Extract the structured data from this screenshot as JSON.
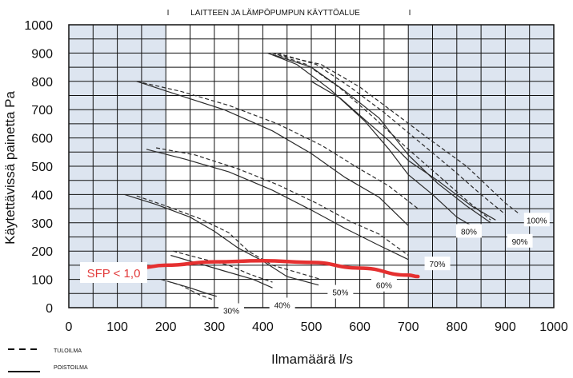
{
  "chart_data": {
    "type": "line",
    "title": "LAITTEEN JA LÄMPÖPUMPUN KÄYTTÖALUE",
    "xlabel": "Ilmamäärä l/s",
    "ylabel": "Käytettävissä painetta Pa",
    "xlim": [
      0,
      1000
    ],
    "ylim": [
      0,
      1000
    ],
    "xticks": [
      "0",
      "50",
      "100",
      "150",
      "200",
      "250",
      "300",
      "350",
      "400",
      "450",
      "500",
      "550",
      "600",
      "650",
      "700",
      "750",
      "800",
      "850",
      "900",
      "950",
      "1000"
    ],
    "xtick_labels": [
      "0",
      "100",
      "200",
      "300",
      "400",
      "500",
      "600",
      "700",
      "800",
      "900",
      "1000"
    ],
    "ytick_labels": [
      "0",
      "100",
      "200",
      "300",
      "400",
      "500",
      "600",
      "700",
      "800",
      "900",
      "1000"
    ],
    "grid": true,
    "shaded_x_ranges": [
      [
        0,
        200
      ],
      [
        700,
        1000
      ]
    ],
    "legend": [
      {
        "label": "TULOILMA",
        "style": "dashed"
      },
      {
        "label": "POISTOILMA",
        "style": "solid"
      }
    ],
    "fan_labels": [
      {
        "text": "30%",
        "x": 335,
        "y": -10
      },
      {
        "text": "40%",
        "x": 440,
        "y": 10
      },
      {
        "text": "50%",
        "x": 560,
        "y": 55
      },
      {
        "text": "60%",
        "x": 650,
        "y": 80
      },
      {
        "text": "70%",
        "x": 760,
        "y": 155
      },
      {
        "text": "80%",
        "x": 825,
        "y": 270
      },
      {
        "text": "90%",
        "x": 930,
        "y": 235
      },
      {
        "text": "100%",
        "x": 965,
        "y": 310
      }
    ],
    "sfp_label": "SFP < 1,0",
    "sfp_curve": [
      [
        140,
        140
      ],
      [
        200,
        150
      ],
      [
        300,
        162
      ],
      [
        400,
        166
      ],
      [
        500,
        160
      ],
      [
        600,
        140
      ],
      [
        700,
        115
      ],
      [
        720,
        110
      ]
    ],
    "series": [
      {
        "style": "dashed",
        "points": [
          [
            190,
            100
          ],
          [
            230,
            80
          ],
          [
            270,
            45
          ],
          [
            295,
            30
          ]
        ]
      },
      {
        "style": "solid",
        "points": [
          [
            210,
            90
          ],
          [
            250,
            70
          ],
          [
            285,
            50
          ],
          [
            305,
            40
          ]
        ]
      },
      {
        "style": "dashed",
        "points": [
          [
            215,
            200
          ],
          [
            270,
            175
          ],
          [
            330,
            150
          ],
          [
            370,
            120
          ],
          [
            420,
            90
          ]
        ]
      },
      {
        "style": "solid",
        "points": [
          [
            210,
            185
          ],
          [
            260,
            160
          ],
          [
            320,
            130
          ],
          [
            380,
            100
          ],
          [
            420,
            70
          ]
        ]
      },
      {
        "style": "dashed",
        "points": [
          [
            140,
            395
          ],
          [
            200,
            360
          ],
          [
            270,
            315
          ],
          [
            330,
            265
          ],
          [
            370,
            200
          ],
          [
            420,
            150
          ],
          [
            520,
            100
          ]
        ]
      },
      {
        "style": "solid",
        "points": [
          [
            115,
            400
          ],
          [
            180,
            365
          ],
          [
            250,
            320
          ],
          [
            300,
            270
          ],
          [
            350,
            210
          ],
          [
            400,
            165
          ],
          [
            450,
            110
          ],
          [
            515,
            80
          ]
        ]
      },
      {
        "style": "dashed",
        "points": [
          [
            180,
            565
          ],
          [
            260,
            540
          ],
          [
            350,
            490
          ],
          [
            430,
            435
          ],
          [
            510,
            370
          ],
          [
            580,
            305
          ],
          [
            640,
            260
          ],
          [
            700,
            185
          ]
        ]
      },
      {
        "style": "solid",
        "points": [
          [
            160,
            560
          ],
          [
            240,
            525
          ],
          [
            330,
            480
          ],
          [
            420,
            415
          ],
          [
            500,
            345
          ],
          [
            570,
            280
          ],
          [
            640,
            220
          ],
          [
            700,
            170
          ]
        ]
      },
      {
        "style": "dashed",
        "points": [
          [
            140,
            800
          ],
          [
            230,
            765
          ],
          [
            330,
            715
          ],
          [
            430,
            650
          ],
          [
            520,
            575
          ],
          [
            600,
            490
          ],
          [
            660,
            430
          ],
          [
            720,
            350
          ]
        ]
      },
      {
        "style": "solid",
        "points": [
          [
            140,
            800
          ],
          [
            220,
            755
          ],
          [
            320,
            700
          ],
          [
            420,
            625
          ],
          [
            500,
            545
          ],
          [
            570,
            460
          ],
          [
            640,
            390
          ],
          [
            700,
            290
          ]
        ]
      },
      {
        "style": "dashed",
        "points": [
          [
            420,
            900
          ],
          [
            490,
            860
          ],
          [
            560,
            775
          ],
          [
            630,
            670
          ],
          [
            700,
            560
          ],
          [
            760,
            470
          ],
          [
            820,
            380
          ],
          [
            870,
            310
          ]
        ]
      },
      {
        "style": "solid",
        "points": [
          [
            410,
            900
          ],
          [
            470,
            860
          ],
          [
            540,
            770
          ],
          [
            610,
            660
          ],
          [
            660,
            560
          ],
          [
            700,
            470
          ],
          [
            750,
            400
          ],
          [
            800,
            320
          ],
          [
            830,
            290
          ]
        ]
      },
      {
        "style": "dashed",
        "points": [
          [
            430,
            900
          ],
          [
            510,
            860
          ],
          [
            580,
            780
          ],
          [
            650,
            690
          ],
          [
            720,
            590
          ],
          [
            790,
            490
          ],
          [
            850,
            400
          ],
          [
            900,
            330
          ]
        ]
      },
      {
        "style": "solid",
        "points": [
          [
            420,
            895
          ],
          [
            500,
            850
          ],
          [
            570,
            765
          ],
          [
            640,
            670
          ],
          [
            700,
            540
          ],
          [
            760,
            440
          ],
          [
            820,
            360
          ],
          [
            870,
            300
          ]
        ]
      },
      {
        "style": "dashed",
        "points": [
          [
            430,
            895
          ],
          [
            520,
            860
          ],
          [
            600,
            780
          ],
          [
            670,
            690
          ],
          [
            740,
            600
          ],
          [
            820,
            500
          ],
          [
            900,
            370
          ],
          [
            930,
            330
          ]
        ]
      },
      {
        "style": "solid",
        "points": [
          [
            500,
            800
          ],
          [
            560,
            740
          ],
          [
            620,
            650
          ],
          [
            660,
            590
          ],
          [
            700,
            520
          ],
          [
            760,
            450
          ],
          [
            830,
            360
          ],
          [
            880,
            310
          ]
        ]
      }
    ]
  }
}
